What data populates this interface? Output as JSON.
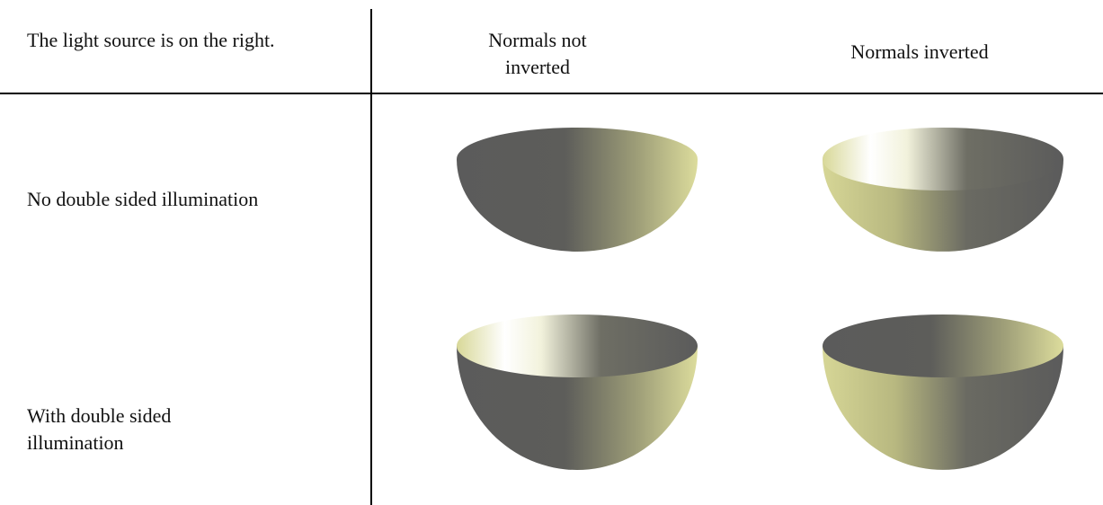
{
  "table": {
    "header": [
      "The light source is on the right.",
      "Normals not inverted",
      "Normals inverted"
    ],
    "rows": [
      [
        "No double sided illumination"
      ],
      [
        "With double sided illumination"
      ]
    ]
  }
}
